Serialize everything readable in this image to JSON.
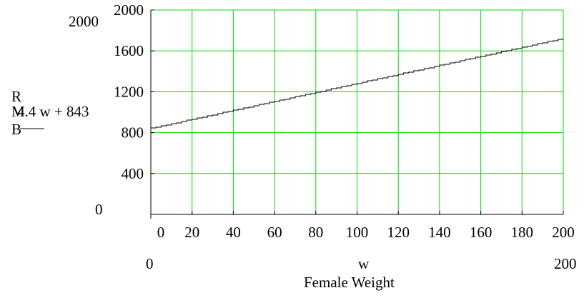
{
  "chart_data": {
    "type": "line",
    "expression": "4.4 w + 843",
    "y_axis_name_letters": [
      "R",
      "M",
      "B"
    ],
    "x_axis_variable": "w",
    "x_axis_title": "Female Weight",
    "x_range_labels": {
      "min": "0",
      "max": "200"
    },
    "y_range_labels": {
      "min": "0",
      "max": "2000"
    },
    "xlim": [
      0,
      200
    ],
    "ylim": [
      0,
      2000
    ],
    "x_ticks": [
      0,
      20,
      40,
      60,
      80,
      100,
      120,
      140,
      160,
      180,
      200
    ],
    "y_ticks": [
      0,
      400,
      800,
      1200,
      1600,
      2000
    ],
    "x_tick_labels": [
      "0",
      "20",
      "40",
      "60",
      "80",
      "100",
      "120",
      "140",
      "160",
      "180",
      "200"
    ],
    "y_tick_labels": [
      "400",
      "800",
      "1200",
      "1600",
      "2000"
    ],
    "grid": true,
    "grid_color": "#00dd00",
    "line_color": "#000000",
    "series": [
      {
        "slope": 4.4,
        "intercept": 843,
        "x": [
          0,
          200
        ],
        "y": [
          843,
          1723
        ]
      }
    ]
  }
}
